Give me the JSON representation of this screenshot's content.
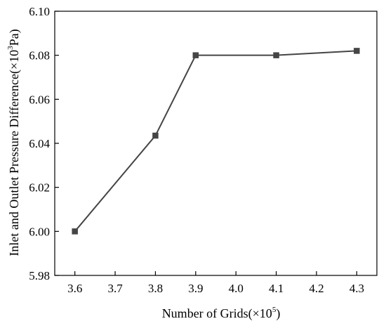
{
  "chart_data": {
    "type": "line",
    "xlabel": {
      "prefix": "Number of Grids(×10",
      "sup": "5",
      "suffix": ")"
    },
    "ylabel": {
      "prefix": "Inlet and Outlet Pressure Difference(×10",
      "sup": "3",
      "suffix": "Pa)"
    },
    "x_ticks": [
      "3.6",
      "3.7",
      "3.8",
      "3.9",
      "4.0",
      "4.1",
      "4.2",
      "4.3"
    ],
    "y_ticks": [
      "5.98",
      "6.00",
      "6.02",
      "6.04",
      "6.06",
      "6.08",
      "6.10"
    ],
    "xlim": [
      3.55,
      4.35
    ],
    "ylim": [
      5.98,
      6.1
    ],
    "x": [
      3.6,
      3.8,
      3.9,
      4.1,
      4.3
    ],
    "y": [
      6.0,
      6.0435,
      6.08,
      6.08,
      6.082
    ],
    "marker": "square",
    "line_color": "#454545",
    "marker_color": "#454545",
    "grid": false,
    "legend": "none"
  }
}
